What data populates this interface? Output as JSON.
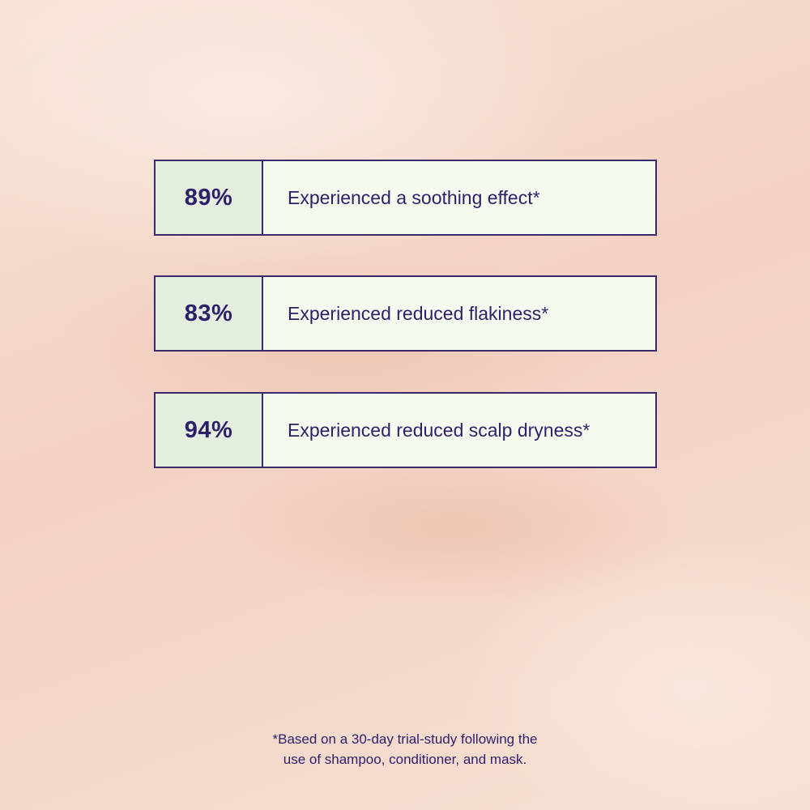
{
  "stats": [
    {
      "value": "89%",
      "label": "Experienced a soothing effect*"
    },
    {
      "value": "83%",
      "label": "Experienced reduced flakiness*"
    },
    {
      "value": "94%",
      "label": "Experienced reduced scalp dryness*"
    }
  ],
  "footnote": {
    "line1": "*Based on a 30-day trial-study following the",
    "line2": "use of shampoo, conditioner, and mask."
  },
  "colors": {
    "text": "#2e1f6b",
    "border": "#3b2a6b",
    "value_bg": "#e3eedf",
    "label_bg": "#f3fbef"
  }
}
